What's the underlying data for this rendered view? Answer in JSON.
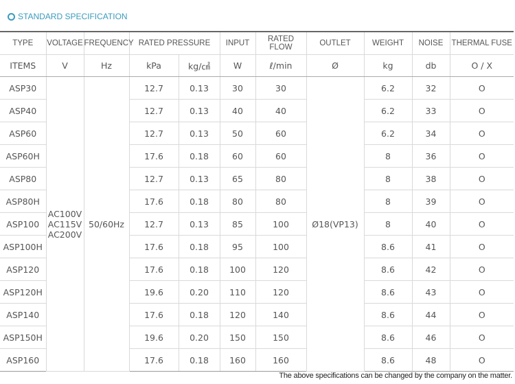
{
  "title": "STANDARD SPECIFICATION",
  "table": {
    "header": [
      "TYPE",
      "VOLTAGE",
      "FREQUENCY",
      "RATED PRESSURE",
      "INPUT",
      "RATED FLOW",
      "OUTLET",
      "WEIGHT",
      "NOISE",
      "THERMAL FUSE"
    ],
    "units": [
      "ITEMS",
      "V",
      "Hz",
      "kPa",
      "kg/㎠",
      "W",
      "ℓ/min",
      "Ø",
      "kg",
      "db",
      "O / X"
    ],
    "voltage": [
      "AC100V",
      "AC115V",
      "AC200V"
    ],
    "frequency": "50/60Hz",
    "outlet": "Ø18(VP13)",
    "rows": [
      [
        "ASP30",
        "12.7",
        "0.13",
        "30",
        "30",
        "6.2",
        "32",
        "O"
      ],
      [
        "ASP40",
        "12.7",
        "0.13",
        "40",
        "40",
        "6.2",
        "33",
        "O"
      ],
      [
        "ASP60",
        "12.7",
        "0.13",
        "50",
        "60",
        "6.2",
        "34",
        "O"
      ],
      [
        "ASP60H",
        "17.6",
        "0.18",
        "60",
        "60",
        "8",
        "36",
        "O"
      ],
      [
        "ASP80",
        "12.7",
        "0.13",
        "65",
        "80",
        "8",
        "38",
        "O"
      ],
      [
        "ASP80H",
        "17.6",
        "0.18",
        "80",
        "80",
        "8",
        "39",
        "O"
      ],
      [
        "ASP100",
        "12.7",
        "0.13",
        "85",
        "100",
        "8",
        "40",
        "O"
      ],
      [
        "ASP100H",
        "17.6",
        "0.18",
        "95",
        "100",
        "8.6",
        "41",
        "O"
      ],
      [
        "ASP120",
        "17.6",
        "0.18",
        "100",
        "120",
        "8.6",
        "42",
        "O"
      ],
      [
        "ASP120H",
        "19.6",
        "0.20",
        "110",
        "120",
        "8.6",
        "43",
        "O"
      ],
      [
        "ASP140",
        "17.6",
        "0.18",
        "120",
        "140",
        "8.6",
        "44",
        "O"
      ],
      [
        "ASP150H",
        "19.6",
        "0.20",
        "150",
        "150",
        "8.6",
        "46",
        "O"
      ],
      [
        "ASP160",
        "17.6",
        "0.18",
        "160",
        "160",
        "8.6",
        "48",
        "O"
      ]
    ]
  },
  "footnote": "The above specifications can be changed by the company on the matter."
}
